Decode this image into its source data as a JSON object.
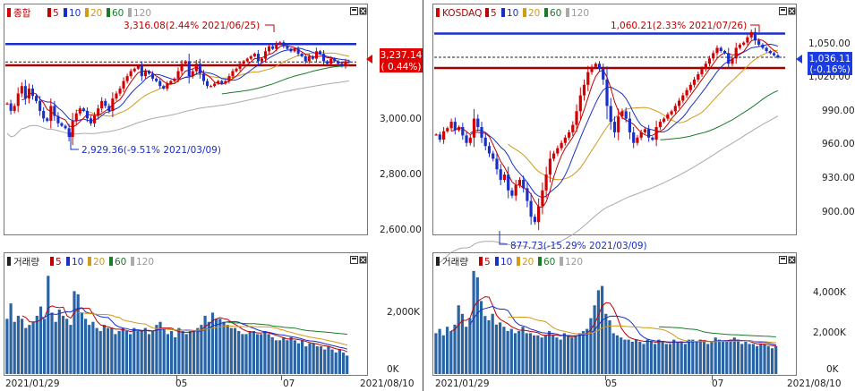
{
  "colors": {
    "up": "#d20000",
    "down": "#1a2fc8",
    "ma5": "#c00000",
    "ma10": "#1a2fc8",
    "ma20": "#d19a1a",
    "ma60": "#1a7a2a",
    "ma120": "#aaaaaa",
    "volume": "#2a64a4",
    "high_line": "#1a2fc8",
    "low_line": "#a00000",
    "price_box_up": "#e00000",
    "price_box_down": "#1a3ce0"
  },
  "date_axis": {
    "start": "2021/01/29",
    "mid1": "05",
    "mid2": "07",
    "end": "2021/08/10"
  },
  "legend_labels": {
    "ma5": "5",
    "ma10": "10",
    "ma20": "20",
    "ma60": "60",
    "ma120": "120"
  },
  "panels": [
    {
      "price": {
        "title": "종합",
        "high_annotation": "3,316.08(2.44% 2021/06/25)",
        "low_annotation": "2,929.36(-9.51% 2021/03/09)",
        "current_price": "3,237.14",
        "current_change": "( 0.44%)",
        "y_ticks": [
          "3,000.00",
          "2,800.00",
          "2,600.00"
        ]
      },
      "volume": {
        "title": "거래량",
        "y_ticks": [
          "2,000K",
          "0K"
        ]
      }
    },
    {
      "price": {
        "title": "KOSDAQ",
        "high_annotation": "1,060.21(2.33% 2021/07/26)",
        "low_annotation": "877.73(-15.29% 2021/03/09)",
        "current_price": "1,036.11",
        "current_change": "(-0.16%)",
        "y_ticks": [
          "1,050.00",
          "1,020.00",
          "990.00",
          "960.00",
          "930.00",
          "900.00"
        ]
      },
      "volume": {
        "title": "거래량",
        "y_ticks": [
          "4,000K",
          "2,000K",
          "0K"
        ]
      }
    }
  ],
  "chart_data": [
    {
      "type": "candlestick",
      "title": "종합",
      "x_range": [
        "2021/01/29",
        "2021/08/10"
      ],
      "ylim": [
        2550,
        3400
      ],
      "high": {
        "value": 3316.08,
        "change_pct": 2.44,
        "date": "2021/06/25"
      },
      "low": {
        "value": 2929.36,
        "change_pct": -9.51,
        "date": "2021/03/09"
      },
      "current": {
        "value": 3237.14,
        "change_pct": 0.44
      },
      "closes": [
        3070,
        3040,
        3060,
        3110,
        3140,
        3090,
        3130,
        3100,
        3080,
        3040,
        3010,
        3000,
        3060,
        3020,
        2990,
        2980,
        2970,
        2935,
        3000,
        3030,
        3050,
        3040,
        3010,
        2990,
        3020,
        3050,
        3080,
        3060,
        3040,
        3090,
        3110,
        3130,
        3160,
        3180,
        3200,
        3210,
        3220,
        3180,
        3200,
        3190,
        3170,
        3160,
        3140,
        3130,
        3150,
        3160,
        3170,
        3200,
        3230,
        3240,
        3180,
        3200,
        3230,
        3190,
        3160,
        3140,
        3140,
        3150,
        3160,
        3150,
        3160,
        3180,
        3200,
        3210,
        3230,
        3240,
        3250,
        3260,
        3270,
        3240,
        3250,
        3280,
        3300,
        3290,
        3310,
        3316,
        3300,
        3290,
        3280,
        3290,
        3270,
        3260,
        3240,
        3260,
        3250,
        3280,
        3270,
        3240,
        3230,
        3250,
        3240,
        3230,
        3220,
        3240,
        3237
      ]
    },
    {
      "type": "candlestick",
      "title": "KOSDAQ",
      "x_range": [
        "2021/01/29",
        "2021/08/10"
      ],
      "ylim": [
        870,
        1070
      ],
      "high": {
        "value": 1060.21,
        "change_pct": 2.33,
        "date": "2021/07/26"
      },
      "low": {
        "value": 877.73,
        "change_pct": -15.29,
        "date": "2021/03/09"
      },
      "current": {
        "value": 1036.11,
        "change_pct": -0.16
      },
      "closes": [
        963,
        958,
        966,
        969,
        975,
        967,
        970,
        962,
        955,
        960,
        978,
        970,
        960,
        952,
        945,
        940,
        930,
        920,
        925,
        910,
        905,
        915,
        920,
        912,
        900,
        885,
        880,
        895,
        910,
        925,
        940,
        945,
        950,
        955,
        960,
        965,
        972,
        985,
        1000,
        1010,
        1022,
        1027,
        1030,
        1025,
        1015,
        990,
        975,
        965,
        980,
        985,
        978,
        965,
        955,
        960,
        965,
        968,
        960,
        958,
        970,
        975,
        978,
        982,
        985,
        990,
        995,
        1000,
        1005,
        1010,
        1015,
        1020,
        1025,
        1030,
        1035,
        1040,
        1045,
        1042,
        1040,
        1030,
        1035,
        1045,
        1048,
        1050,
        1055,
        1060,
        1052,
        1048,
        1045,
        1042,
        1040,
        1038,
        1036
      ]
    },
    {
      "type": "bar",
      "title": "거래량 (종합)",
      "ylim": [
        0,
        3500
      ],
      "values_k": [
        1800,
        2300,
        1700,
        1900,
        1800,
        1500,
        1600,
        1700,
        1900,
        2200,
        1800,
        3200,
        2000,
        1700,
        2100,
        1900,
        1800,
        1600,
        2700,
        2600,
        2000,
        1800,
        1600,
        1700,
        1500,
        1400,
        1600,
        1500,
        1500,
        1300,
        1400,
        1500,
        1400,
        1300,
        1500,
        1400,
        1400,
        1500,
        1300,
        1400,
        1600,
        1700,
        1500,
        1300,
        1400,
        1200,
        1500,
        1400,
        1300,
        1400,
        1400,
        1500,
        1600,
        1900,
        1700,
        2000,
        1800,
        1800,
        1700,
        1600,
        1500,
        1500,
        1400,
        1300,
        1300,
        1400,
        1400,
        1300,
        1300,
        1400,
        1300,
        1200,
        1100,
        1100,
        1200,
        1100,
        1200,
        1100,
        1000,
        1100,
        900,
        1000,
        1000,
        900,
        900,
        800,
        900,
        800,
        700,
        800,
        700,
        600
      ]
    },
    {
      "type": "bar",
      "title": "거래량 (KOSDAQ)",
      "ylim": [
        0,
        5000
      ],
      "values_k": [
        1900,
        2100,
        1800,
        2200,
        2000,
        2300,
        3200,
        2800,
        2200,
        2600,
        4800,
        4500,
        3400,
        2700,
        2500,
        2800,
        2300,
        2400,
        2200,
        2000,
        2100,
        1900,
        2000,
        2200,
        1900,
        1900,
        1800,
        1800,
        1700,
        1800,
        2000,
        1800,
        1700,
        1600,
        1900,
        1800,
        1700,
        1800,
        1900,
        2000,
        2100,
        2600,
        3200,
        3900,
        4100,
        2800,
        2500,
        1900,
        1800,
        1700,
        1600,
        1600,
        1500,
        1600,
        1500,
        1400,
        1600,
        1500,
        1400,
        1600,
        1500,
        1400,
        1400,
        1600,
        1500,
        1500,
        1400,
        1600,
        1600,
        1500,
        1600,
        1500,
        1400,
        1500,
        1700,
        1600,
        1500,
        1500,
        1600,
        1700,
        1600,
        1400,
        1500,
        1400,
        1400,
        1300,
        1400,
        1400,
        1300,
        1200,
        1300
      ]
    }
  ]
}
